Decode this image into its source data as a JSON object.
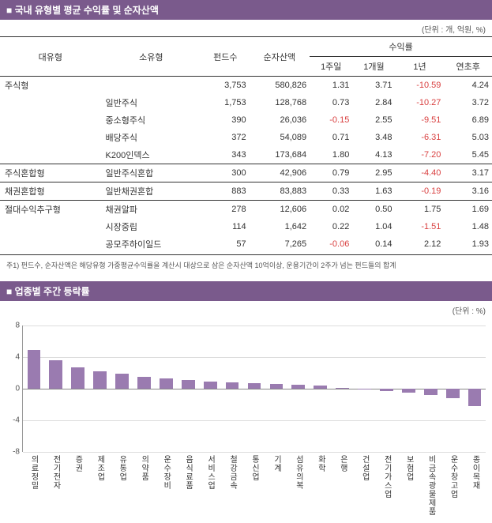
{
  "section1": {
    "title": "■ 국내 유형별 평균 수익률 및 순자산액",
    "unit": "(단위 : 개, 억원, %)",
    "headers": {
      "col1": "대유형",
      "col2": "소유형",
      "col3": "펀드수",
      "col4": "순자산액",
      "ret_group": "수익률",
      "ret1": "1주일",
      "ret2": "1개월",
      "ret3": "1년",
      "ret4": "연초후"
    },
    "rows": [
      {
        "grp": "주식형",
        "sub": "",
        "funds": "3,753",
        "nav": "580,826",
        "r1": "1.31",
        "r2": "3.71",
        "r3": "-10.59",
        "r4": "4.24",
        "newgrp": true
      },
      {
        "grp": "",
        "sub": "일반주식",
        "funds": "1,753",
        "nav": "128,768",
        "r1": "0.73",
        "r2": "2.84",
        "r3": "-10.27",
        "r4": "3.72"
      },
      {
        "grp": "",
        "sub": "중소형주식",
        "funds": "390",
        "nav": "26,036",
        "r1": "-0.15",
        "r2": "2.55",
        "r3": "-9.51",
        "r4": "6.89"
      },
      {
        "grp": "",
        "sub": "배당주식",
        "funds": "372",
        "nav": "54,089",
        "r1": "0.71",
        "r2": "3.48",
        "r3": "-6.31",
        "r4": "5.03"
      },
      {
        "grp": "",
        "sub": "K200인덱스",
        "funds": "343",
        "nav": "173,684",
        "r1": "1.80",
        "r2": "4.13",
        "r3": "-7.20",
        "r4": "5.45"
      },
      {
        "grp": "주식혼합형",
        "sub": "일반주식혼합",
        "funds": "300",
        "nav": "42,906",
        "r1": "0.79",
        "r2": "2.95",
        "r3": "-4.40",
        "r4": "3.17",
        "newgrp": true
      },
      {
        "grp": "채권혼합형",
        "sub": "일반채권혼합",
        "funds": "883",
        "nav": "83,883",
        "r1": "0.33",
        "r2": "1.63",
        "r3": "-0.19",
        "r4": "3.16",
        "newgrp": true
      },
      {
        "grp": "절대수익추구형",
        "sub": "채권알파",
        "funds": "278",
        "nav": "12,606",
        "r1": "0.02",
        "r2": "0.50",
        "r3": "1.75",
        "r4": "1.69",
        "newgrp": true
      },
      {
        "grp": "",
        "sub": "시장중립",
        "funds": "114",
        "nav": "1,642",
        "r1": "0.22",
        "r2": "1.04",
        "r3": "-1.51",
        "r4": "1.48"
      },
      {
        "grp": "",
        "sub": "공모주하이일드",
        "funds": "57",
        "nav": "7,265",
        "r1": "-0.06",
        "r2": "0.14",
        "r3": "2.12",
        "r4": "1.93"
      }
    ],
    "footnote": "주1) 펀드수, 순자산액은 해당유형 가중평균수익률을 계산시 대상으로 삼은 순자산액 10억이상, 운용기간이 2주가 넘는 펀드들의 합계"
  },
  "section2": {
    "title": "■ 업종별 주간 등락률",
    "unit": "(단위 : %)",
    "chart": {
      "type": "bar",
      "ymin": -8,
      "ymax": 8,
      "ytick_step": 4,
      "bar_color": "#9a7bb0",
      "grid_color": "#dddddd",
      "axis_color": "#888888",
      "background": "#ffffff",
      "categories": [
        "의료정밀",
        "전기전자",
        "증권",
        "제조업",
        "유통업",
        "의약품",
        "운수장비",
        "음식료품",
        "서비스업",
        "철강금속",
        "통신업",
        "기계",
        "섬유의복",
        "화학",
        "은행",
        "건설업",
        "전기가스업",
        "보험업",
        "비금속광물제품",
        "운수창고업",
        "종이목재"
      ],
      "values": [
        4.9,
        3.6,
        2.7,
        2.2,
        1.9,
        1.5,
        1.3,
        1.1,
        0.9,
        0.8,
        0.7,
        0.6,
        0.5,
        0.4,
        0.1,
        -0.1,
        -0.3,
        -0.5,
        -0.8,
        -1.2,
        -2.2
      ]
    }
  }
}
